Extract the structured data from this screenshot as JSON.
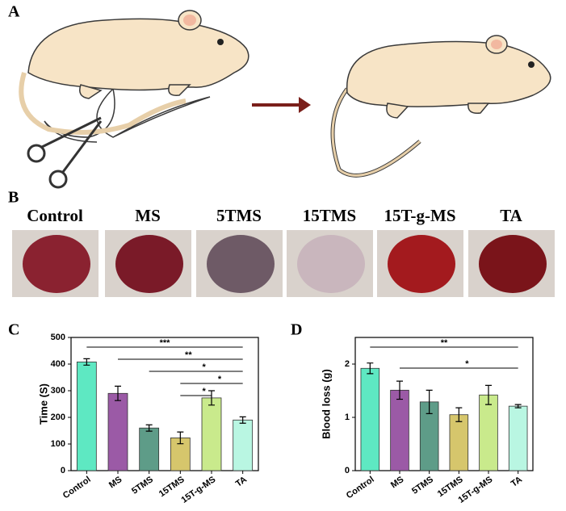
{
  "panels": {
    "a": "A",
    "b": "B",
    "c": "C",
    "d": "D"
  },
  "photos": [
    "Control",
    "MS",
    "5TMS",
    "15TMS",
    "15T-g-MS",
    "TA"
  ],
  "chart_data": [
    {
      "type": "bar",
      "ylabel": "Time (S)",
      "categories": [
        "Control",
        "MS",
        "5TMS",
        "15TMS",
        "15T-g-MS",
        "TA"
      ],
      "values": [
        408,
        290,
        160,
        123,
        273,
        190
      ],
      "errors": [
        12,
        27,
        12,
        22,
        27,
        12
      ],
      "colors": [
        "#5ee8c2",
        "#9b5aa6",
        "#5e9c88",
        "#d6c66c",
        "#c9ea8c",
        "#b9f6e2"
      ],
      "ylim": [
        0,
        500
      ],
      "yticks": [
        0,
        100,
        200,
        300,
        400,
        500
      ],
      "annotations": [
        {
          "from": "Control",
          "to": "TA",
          "label": "***"
        },
        {
          "from": "MS",
          "to": "TA",
          "label": "**"
        },
        {
          "from": "5TMS",
          "to": "TA",
          "label": "*"
        },
        {
          "from": "15TMS",
          "to": "TA",
          "label": "*"
        },
        {
          "from": "15TMS",
          "to": "15T-g-MS",
          "label": "*"
        }
      ]
    },
    {
      "type": "bar",
      "ylabel": "Blood loss (g)",
      "categories": [
        "Control",
        "MS",
        "5TMS",
        "15TMS",
        "15T-g-MS",
        "TA"
      ],
      "values": [
        1.92,
        1.51,
        1.29,
        1.05,
        1.42,
        1.21
      ],
      "errors": [
        0.1,
        0.17,
        0.22,
        0.13,
        0.18,
        0.03
      ],
      "colors": [
        "#5ee8c2",
        "#9b5aa6",
        "#5e9c88",
        "#d6c66c",
        "#c9ea8c",
        "#b9f6e2"
      ],
      "ylim": [
        0,
        2.5
      ],
      "yticks": [
        0,
        1,
        2
      ],
      "annotations": [
        {
          "from": "Control",
          "to": "TA",
          "label": "**"
        },
        {
          "from": "MS",
          "to": "TA",
          "label": "*"
        }
      ]
    }
  ]
}
